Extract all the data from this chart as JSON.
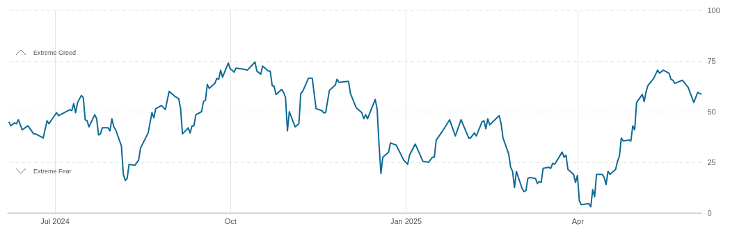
{
  "chart_data": {
    "type": "line",
    "x": [
      "2024-06-07",
      "2024-06-08",
      "2024-06-10",
      "2024-06-11",
      "2024-06-12",
      "2024-06-14",
      "2024-06-17",
      "2024-06-20",
      "2024-06-21",
      "2024-06-25",
      "2024-06-27",
      "2024-06-28",
      "2024-07-02",
      "2024-07-03",
      "2024-07-09",
      "2024-07-10",
      "2024-07-11",
      "2024-07-12",
      "2024-07-13",
      "2024-07-15",
      "2024-07-16",
      "2024-07-17",
      "2024-07-18",
      "2024-07-19",
      "2024-07-22",
      "2024-07-23",
      "2024-07-24",
      "2024-07-25",
      "2024-07-26",
      "2024-07-29",
      "2024-07-30",
      "2024-07-31",
      "2024-08-01",
      "2024-08-02",
      "2024-08-05",
      "2024-08-06",
      "2024-08-07",
      "2024-08-08",
      "2024-08-09",
      "2024-08-12",
      "2024-08-14",
      "2024-08-15",
      "2024-08-19",
      "2024-08-21",
      "2024-08-22",
      "2024-08-23",
      "2024-08-26",
      "2024-08-27",
      "2024-08-28",
      "2024-08-30",
      "2024-09-02",
      "2024-09-04",
      "2024-09-05",
      "2024-09-06",
      "2024-09-09",
      "2024-09-10",
      "2024-09-11",
      "2024-09-12",
      "2024-09-13",
      "2024-09-16",
      "2024-09-17",
      "2024-09-18",
      "2024-09-19",
      "2024-09-20",
      "2024-09-23",
      "2024-09-24",
      "2024-09-25",
      "2024-09-26",
      "2024-09-27",
      "2024-09-30",
      "2024-10-01",
      "2024-10-02",
      "2024-10-03",
      "2024-10-04",
      "2024-10-08",
      "2024-10-10",
      "2024-10-14",
      "2024-10-15",
      "2024-10-17",
      "2024-10-18",
      "2024-10-21",
      "2024-10-22",
      "2024-10-23",
      "2024-10-24",
      "2024-10-25",
      "2024-10-28",
      "2024-10-29",
      "2024-10-30",
      "2024-10-31",
      "2024-11-01",
      "2024-11-04",
      "2024-11-06",
      "2024-11-07",
      "2024-11-08",
      "2024-11-11",
      "2024-11-13",
      "2024-11-15",
      "2024-11-18",
      "2024-11-19",
      "2024-11-20",
      "2024-11-22",
      "2024-11-25",
      "2024-11-26",
      "2024-11-27",
      "2024-12-02",
      "2024-12-03",
      "2024-12-06",
      "2024-12-09",
      "2024-12-10",
      "2024-12-11",
      "2024-12-12",
      "2024-12-16",
      "2024-12-17",
      "2024-12-18",
      "2024-12-19",
      "2024-12-20",
      "2024-12-23",
      "2024-12-24",
      "2024-12-27",
      "2024-12-31",
      "2025-01-02",
      "2025-01-03",
      "2025-01-06",
      "2025-01-10",
      "2025-01-13",
      "2025-01-15",
      "2025-01-16",
      "2025-01-17",
      "2025-01-20",
      "2025-01-24",
      "2025-01-27",
      "2025-01-30",
      "2025-02-03",
      "2025-02-04",
      "2025-02-06",
      "2025-02-07",
      "2025-02-10",
      "2025-02-11",
      "2025-02-12",
      "2025-02-13",
      "2025-02-14",
      "2025-02-19",
      "2025-02-20",
      "2025-02-21",
      "2025-02-24",
      "2025-02-25",
      "2025-02-26",
      "2025-02-27",
      "2025-02-28",
      "2025-03-03",
      "2025-03-04",
      "2025-03-05",
      "2025-03-06",
      "2025-03-07",
      "2025-03-10",
      "2025-03-11",
      "2025-03-12",
      "2025-03-13",
      "2025-03-14",
      "2025-03-17",
      "2025-03-18",
      "2025-03-19",
      "2025-03-20",
      "2025-03-24",
      "2025-03-25",
      "2025-03-26",
      "2025-03-27",
      "2025-03-30",
      "2025-03-31",
      "2025-04-01",
      "2025-04-02",
      "2025-04-03",
      "2025-04-06",
      "2025-04-07",
      "2025-04-08",
      "2025-04-09",
      "2025-04-10",
      "2025-04-11",
      "2025-04-14",
      "2025-04-15",
      "2025-04-16",
      "2025-04-17",
      "2025-04-18",
      "2025-04-21",
      "2025-04-22",
      "2025-04-23",
      "2025-04-24",
      "2025-04-25",
      "2025-04-28",
      "2025-04-29",
      "2025-04-30",
      "2025-05-01",
      "2025-05-02",
      "2025-05-05",
      "2025-05-06",
      "2025-05-07",
      "2025-05-08",
      "2025-05-11",
      "2025-05-13",
      "2025-05-14",
      "2025-05-16",
      "2025-05-19",
      "2025-05-20",
      "2025-05-21",
      "2025-05-22",
      "2025-05-26",
      "2025-05-29",
      "2025-06-01",
      "2025-06-03",
      "2025-06-05"
    ],
    "series": [
      {
        "color": "#0e6a94",
        "values": [
          45,
          43,
          44.5,
          44,
          46,
          41,
          43,
          39,
          39,
          37,
          45.5,
          44,
          49.5,
          48,
          51,
          50.5,
          54,
          49.5,
          54.5,
          58,
          57,
          46,
          45.5,
          42.5,
          48.5,
          46.5,
          38.5,
          39,
          42,
          42,
          40.5,
          46.5,
          42.5,
          41,
          33,
          19,
          16,
          17,
          24,
          23.5,
          26,
          32,
          39.5,
          49.5,
          47,
          51.5,
          53,
          52,
          51,
          60,
          57.5,
          56.5,
          51.5,
          39,
          42,
          39.5,
          43,
          43,
          48.5,
          50,
          55,
          55.5,
          63.5,
          61.5,
          64,
          66.5,
          66,
          70.5,
          67,
          74,
          71,
          70.5,
          69.5,
          71.5,
          71,
          70.5,
          74.5,
          70,
          68.5,
          72.5,
          70,
          70,
          63,
          62.5,
          58.5,
          61,
          59.5,
          57,
          40.5,
          50,
          42.5,
          44,
          59,
          60,
          66.5,
          66.5,
          51.5,
          50.5,
          49.5,
          49.5,
          60.5,
          63,
          66,
          64.5,
          65,
          59,
          52,
          49.5,
          46.5,
          48.5,
          46.5,
          56,
          51.5,
          34,
          19.5,
          27.5,
          30,
          34.5,
          33.5,
          26,
          24,
          28.5,
          34,
          25.5,
          25,
          27.5,
          27.5,
          36,
          40,
          46,
          38,
          46,
          37,
          37,
          39.5,
          38,
          45,
          45.5,
          41.5,
          46.5,
          43.5,
          48,
          44,
          37,
          29,
          22.5,
          20.5,
          12.5,
          20.5,
          12,
          10.5,
          11,
          17,
          17.5,
          17,
          14.5,
          15.5,
          15,
          22,
          22.5,
          22,
          24.5,
          24,
          30,
          27.5,
          28.5,
          21.5,
          19,
          15,
          18.5,
          6,
          4,
          4.5,
          4.5,
          3,
          11.5,
          8,
          19,
          19,
          17.5,
          14,
          20.5,
          19,
          21.5,
          25.5,
          28,
          37,
          35.5,
          36,
          35.5,
          43,
          41,
          54.5,
          58.5,
          55,
          60,
          63,
          66.5,
          70.5,
          69,
          70.5,
          69,
          66,
          65.5,
          64,
          65.5,
          62,
          54.5,
          59.5,
          58.5
        ]
      }
    ],
    "xlim": [
      "2024-06-06",
      "2025-06-05"
    ],
    "xticks": [
      {
        "value": "2024-07-01",
        "label": "Jul 2024"
      },
      {
        "value": "2024-10-01",
        "label": "Oct"
      },
      {
        "value": "2025-01-01",
        "label": "Jan 2025"
      },
      {
        "value": "2025-04-01",
        "label": "Apr"
      }
    ],
    "ylim": [
      0,
      100
    ],
    "yticks": [
      0,
      25,
      50,
      75,
      100
    ],
    "grid": true,
    "annotations": [
      "Extreme Greed",
      "Extreme Fear"
    ]
  }
}
